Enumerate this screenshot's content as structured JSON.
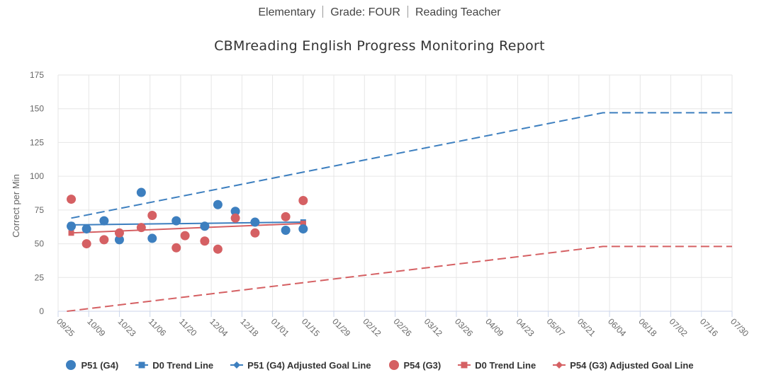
{
  "header": {
    "school": "Elementary",
    "grade": "Grade: FOUR",
    "teacher": "Reading Teacher"
  },
  "chart_data": {
    "type": "line",
    "title": "CBMreading English Progress Monitoring Report",
    "ylabel": "Correct per Min",
    "xlabel": "",
    "ylim": [
      0,
      175
    ],
    "yticks": [
      0,
      25,
      50,
      75,
      100,
      125,
      150,
      175
    ],
    "xtick_labels": [
      "09/25",
      "10/09",
      "10/23",
      "11/06",
      "11/20",
      "12/04",
      "12/18",
      "01/01",
      "01/15",
      "01/29",
      "02/12",
      "02/26",
      "03/12",
      "03/26",
      "04/09",
      "04/23",
      "05/07",
      "05/21",
      "06/04",
      "06/18",
      "07/02",
      "07/16",
      "07/30"
    ],
    "grid": true,
    "legend_position": "bottom",
    "colors": {
      "p51": "#3d7fbf",
      "p54": "#d56063"
    },
    "series": [
      {
        "name": "P51 (G4)",
        "kind": "scatter",
        "color": "#3d7fbf",
        "points": [
          {
            "x": "10/01",
            "y": 63
          },
          {
            "x": "10/08",
            "y": 61
          },
          {
            "x": "10/16",
            "y": 67
          },
          {
            "x": "10/23",
            "y": 53
          },
          {
            "x": "11/02",
            "y": 88
          },
          {
            "x": "11/07",
            "y": 54
          },
          {
            "x": "11/18",
            "y": 67
          },
          {
            "x": "12/01",
            "y": 63
          },
          {
            "x": "12/07",
            "y": 79
          },
          {
            "x": "12/15",
            "y": 74
          },
          {
            "x": "12/24",
            "y": 66
          },
          {
            "x": "01/07",
            "y": 60
          },
          {
            "x": "01/15",
            "y": 61
          }
        ]
      },
      {
        "name": "D0 Trend Line",
        "kind": "trend",
        "color": "#3d7fbf",
        "points": [
          {
            "x": "10/01",
            "y": 64
          },
          {
            "x": "01/15",
            "y": 66
          }
        ]
      },
      {
        "name": "P51 (G4) Adjusted Goal Line",
        "kind": "goal",
        "color": "#3d7fbf",
        "points": [
          {
            "x": "10/01",
            "y": 69
          },
          {
            "x": "06/01",
            "y": 147
          },
          {
            "x": "07/30",
            "y": 147
          }
        ]
      },
      {
        "name": "P54 (G3)",
        "kind": "scatter",
        "color": "#d56063",
        "points": [
          {
            "x": "10/01",
            "y": 83
          },
          {
            "x": "10/08",
            "y": 50
          },
          {
            "x": "10/16",
            "y": 53
          },
          {
            "x": "10/23",
            "y": 58
          },
          {
            "x": "11/02",
            "y": 62
          },
          {
            "x": "11/07",
            "y": 71
          },
          {
            "x": "11/18",
            "y": 47
          },
          {
            "x": "11/22",
            "y": 56
          },
          {
            "x": "12/01",
            "y": 52
          },
          {
            "x": "12/07",
            "y": 46
          },
          {
            "x": "12/15",
            "y": 69
          },
          {
            "x": "12/24",
            "y": 58
          },
          {
            "x": "01/07",
            "y": 70
          },
          {
            "x": "01/15",
            "y": 82
          }
        ]
      },
      {
        "name": "D0 Trend Line",
        "kind": "trend",
        "color": "#d56063",
        "points": [
          {
            "x": "10/01",
            "y": 58
          },
          {
            "x": "01/15",
            "y": 65
          }
        ]
      },
      {
        "name": "P54 (G3) Adjusted Goal Line",
        "kind": "goal",
        "color": "#d56063",
        "points": [
          {
            "x": "09/29",
            "y": 0
          },
          {
            "x": "06/01",
            "y": 48
          },
          {
            "x": "07/30",
            "y": 48
          }
        ]
      }
    ]
  },
  "legend": {
    "items": [
      {
        "label": "P51 (G4)",
        "symbol": "circle",
        "color": "#3d7fbf"
      },
      {
        "label": "D0 Trend Line",
        "symbol": "square-line",
        "color": "#3d7fbf"
      },
      {
        "label": "P51 (G4) Adjusted Goal Line",
        "symbol": "diamond-line",
        "color": "#3d7fbf"
      },
      {
        "label": "P54 (G3)",
        "symbol": "circle",
        "color": "#d56063"
      },
      {
        "label": "D0 Trend Line",
        "symbol": "square-line",
        "color": "#d56063"
      },
      {
        "label": "P54 (G3) Adjusted Goal Line",
        "symbol": "diamond-line",
        "color": "#d56063"
      }
    ]
  }
}
